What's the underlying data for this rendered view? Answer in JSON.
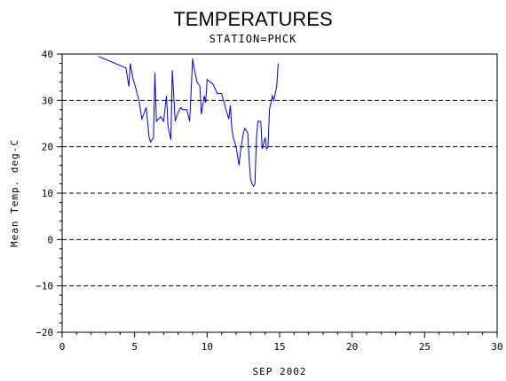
{
  "chart_data": {
    "type": "line",
    "title": "TEMPERATURES",
    "subtitle": "STATION=PHCK",
    "xlabel": "SEP 2002",
    "ylabel": "Mean Temp. deg-C",
    "xlim": [
      0,
      30
    ],
    "ylim": [
      -20,
      40
    ],
    "x_ticks": [
      0,
      5,
      10,
      15,
      20,
      25,
      30
    ],
    "y_ticks": [
      -20,
      -10,
      0,
      10,
      20,
      30,
      40
    ],
    "grid": "horizontal dashed",
    "series_color": "#0000cc",
    "series": [
      {
        "x": [
          2.5,
          4.4,
          4.6,
          4.7,
          4.9,
          5.0,
          5.3,
          5.5,
          5.8,
          6.0,
          6.1,
          6.3,
          6.4,
          6.5,
          6.8,
          7.0,
          7.2,
          7.3,
          7.5,
          7.6,
          7.8,
          8.0,
          8.2,
          8.3,
          8.6,
          8.8,
          9.0,
          9.1,
          9.3,
          9.5,
          9.6,
          9.8,
          9.9,
          10.0,
          10.4,
          10.7,
          11.0,
          11.3,
          11.5,
          11.6,
          11.7,
          11.8,
          12.0,
          12.2,
          12.3,
          12.5,
          12.6,
          12.8,
          12.9,
          13.0,
          13.1,
          13.2,
          13.3,
          13.4,
          13.5,
          13.7,
          13.8,
          14.0,
          14.1,
          14.2,
          14.3,
          14.5,
          14.6,
          14.8,
          14.9
        ],
        "values": [
          39.5,
          37.0,
          33.0,
          38.0,
          34.5,
          33.5,
          30.0,
          26.0,
          28.5,
          22.0,
          21.0,
          22.0,
          36.0,
          25.5,
          26.5,
          25.5,
          31.0,
          24.5,
          21.5,
          36.5,
          25.5,
          27.5,
          28.5,
          28.0,
          28.0,
          25.5,
          39.0,
          37.0,
          34.0,
          33.0,
          27.0,
          31.0,
          29.5,
          34.5,
          33.5,
          31.5,
          31.5,
          28.0,
          26.0,
          29.0,
          24.0,
          22.0,
          20.0,
          16.0,
          19.0,
          23.0,
          24.0,
          23.0,
          17.0,
          13.0,
          12.0,
          11.5,
          12.0,
          22.0,
          25.5,
          25.5,
          19.5,
          22.0,
          19.5,
          20.0,
          28.0,
          31.0,
          30.0,
          33.0,
          38.0
        ]
      }
    ]
  }
}
